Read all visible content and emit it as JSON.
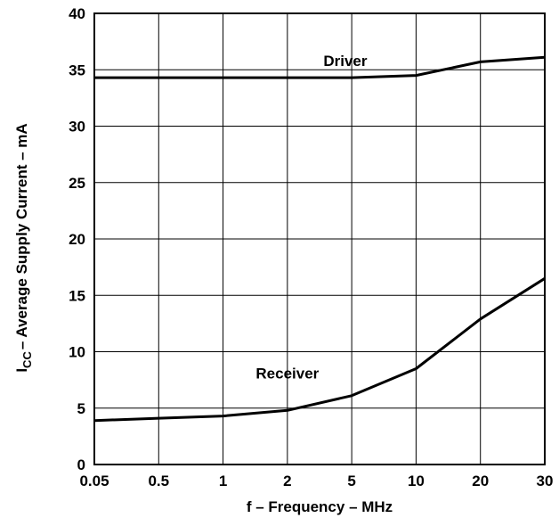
{
  "chart_data": {
    "type": "line",
    "x_scale": "ordinal",
    "x_ticks": [
      "0.05",
      "0.5",
      "1",
      "2",
      "5",
      "10",
      "20",
      "30"
    ],
    "ylim": [
      0,
      40
    ],
    "y_ticks": [
      "0",
      "5",
      "10",
      "15",
      "20",
      "25",
      "30",
      "35",
      "40"
    ],
    "grid": true,
    "xlabel": "f – Frequency – MHz",
    "ylabel": {
      "symbol": "I",
      "subscript": "CC",
      "rest": "– Average Supply Current – mA"
    },
    "series": [
      {
        "name": "Driver",
        "x": [
          "0.05",
          "0.5",
          "1",
          "2",
          "5",
          "10",
          "20",
          "30"
        ],
        "y": [
          34.3,
          34.3,
          34.3,
          34.3,
          34.3,
          34.5,
          35.7,
          36.1
        ]
      },
      {
        "name": "Receiver",
        "x": [
          "0.05",
          "0.5",
          "1",
          "2",
          "5",
          "10",
          "20",
          "30"
        ],
        "y": [
          3.9,
          4.1,
          4.3,
          4.8,
          6.1,
          8.5,
          12.9,
          16.5
        ]
      }
    ]
  }
}
